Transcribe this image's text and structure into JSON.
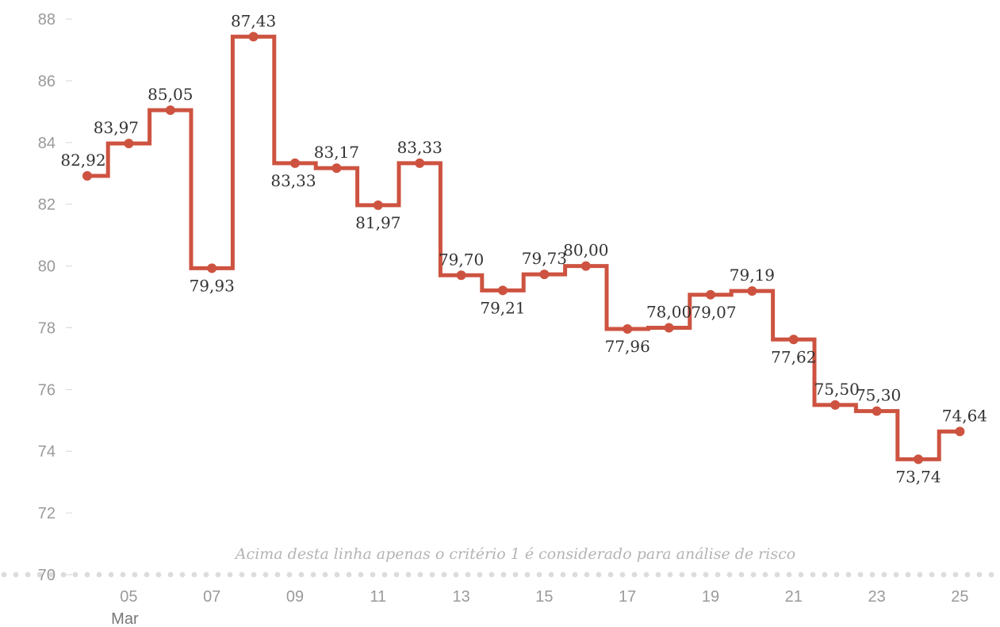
{
  "chart_data": {
    "type": "line",
    "step": true,
    "title": "",
    "xlabel": "",
    "ylabel": "",
    "ylim": [
      70,
      88
    ],
    "grid": false,
    "y_ticks": [
      72,
      74,
      76,
      78,
      80,
      82,
      84,
      86,
      88
    ],
    "x_ticks": [
      {
        "x": 5,
        "label": "05"
      },
      {
        "x": 7,
        "label": "07"
      },
      {
        "x": 9,
        "label": "09"
      },
      {
        "x": 11,
        "label": "11"
      },
      {
        "x": 13,
        "label": "13"
      },
      {
        "x": 15,
        "label": "15"
      },
      {
        "x": 17,
        "label": "17"
      },
      {
        "x": 19,
        "label": "19"
      },
      {
        "x": 21,
        "label": "21"
      },
      {
        "x": 23,
        "label": "23"
      },
      {
        "x": 25,
        "label": "25"
      }
    ],
    "x_month_label": "Mar",
    "series": [
      {
        "color": "#cd5340",
        "x": [
          4,
          5,
          6,
          7,
          8,
          9,
          10,
          11,
          12,
          13,
          14,
          15,
          16,
          17,
          18,
          19,
          20,
          21,
          22,
          23,
          24,
          25
        ],
        "values": [
          82.92,
          83.97,
          85.05,
          79.93,
          87.43,
          83.33,
          83.17,
          81.97,
          83.33,
          79.7,
          79.21,
          79.73,
          80.0,
          77.96,
          78.0,
          79.07,
          79.19,
          77.62,
          75.5,
          75.3,
          73.74,
          74.64
        ],
        "labels": [
          "82,92",
          "83,97",
          "85,05",
          "79,93",
          "87,43",
          "83,33",
          "83,17",
          "81,97",
          "83,33",
          "79,70",
          "79,21",
          "79,73",
          "80,00",
          "77,96",
          "78,00",
          "79,07",
          "79,19",
          "77,62",
          "75,50",
          "75,30",
          "73,74",
          "74,64"
        ]
      }
    ],
    "reference_line": {
      "y": 70,
      "y_label": "70",
      "text": "Acima desta linha apenas o critério 1 é considerado para análise de risco"
    }
  }
}
